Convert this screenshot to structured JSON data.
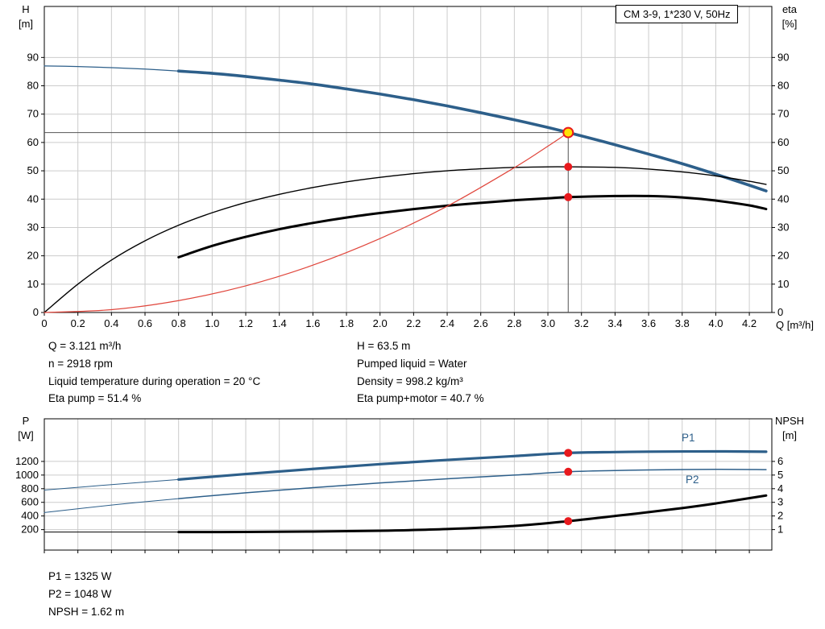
{
  "header": {
    "title_box": "CM 3-9, 1*230 V, 50Hz"
  },
  "info_top": {
    "left": [
      "Q = 3.121 m³/h",
      "n = 2918 rpm",
      "Liquid temperature during operation = 20 °C",
      "Eta pump = 51.4 %"
    ],
    "right": [
      "H = 63.5 m",
      "Pumped liquid = Water",
      "Density = 998.2 kg/m³",
      "Eta pump+motor = 40.7 %"
    ]
  },
  "info_bottom": [
    "P1 = 1325 W",
    "P2 = 1048 W",
    "NPSH = 1.62 m"
  ],
  "colors": {
    "curve_blue": "#2d5f8a",
    "curve_black": "#000000",
    "curve_red": "#e0463c",
    "marker_red": "#e8191d",
    "marker_yellow": "#ffe105",
    "grid": "#cccccc",
    "duty_line": "#555555"
  },
  "chart_data": [
    {
      "type": "line",
      "title": "CM 3-9, 1*230 V, 50Hz",
      "xlabel": "Q [m³/h]",
      "ylabel_left": [
        "H",
        "[m]"
      ],
      "ylabel_right": [
        "eta",
        "[%]"
      ],
      "xlim": [
        0,
        4.334
      ],
      "ylim_left": [
        0,
        108
      ],
      "ylim_right": [
        0,
        108
      ],
      "grid": true,
      "grid_color": "#cccccc",
      "xticks": [
        0,
        0.2,
        0.4,
        0.6,
        0.8,
        1.0,
        1.2,
        1.4,
        1.6,
        1.8,
        2.0,
        2.2,
        2.4,
        2.6,
        2.8,
        3.0,
        3.2,
        3.4,
        3.6,
        3.8,
        4.0,
        4.2
      ],
      "xtick_labels": [
        "0",
        "0.2",
        "0.4",
        "0.6",
        "0.8",
        "1.0",
        "1.2",
        "1.4",
        "1.6",
        "1.8",
        "2.0",
        "2.2",
        "2.4",
        "2.6",
        "2.8",
        "3.0",
        "3.2",
        "3.4",
        "3.6",
        "3.8",
        "4.0",
        "4.2"
      ],
      "yticks_left": [
        0,
        10,
        20,
        30,
        40,
        50,
        60,
        70,
        80,
        90
      ],
      "ytick_labels_left": [
        "0",
        "10",
        "20",
        "30",
        "40",
        "50",
        "60",
        "70",
        "80",
        "90"
      ],
      "yticks_right": [
        0,
        10,
        20,
        30,
        40,
        50,
        60,
        70,
        80,
        90
      ],
      "ytick_labels_right": [
        "0",
        "10",
        "20",
        "30",
        "40",
        "50",
        "60",
        "70",
        "80",
        "90"
      ],
      "duty": {
        "q": 3.121,
        "h": 63.5
      },
      "series": [
        {
          "name": "pump-curve-lead-in",
          "axis": "left",
          "color": "#2d5f8a",
          "width": 1.2,
          "x": [
            0,
            0.2,
            0.4,
            0.6,
            0.8
          ],
          "y": [
            87,
            86.8,
            86.4,
            85.9,
            85.2
          ]
        },
        {
          "name": "pump-curve",
          "axis": "left",
          "color": "#2d5f8a",
          "width": 3.6,
          "x": [
            0.8,
            1.0,
            1.2,
            1.4,
            1.6,
            1.8,
            2.0,
            2.2,
            2.4,
            2.6,
            2.8,
            3.0,
            3.121,
            3.2,
            3.4,
            3.6,
            3.8,
            4.0,
            4.2,
            4.3
          ],
          "y": [
            85.2,
            84.4,
            83.3,
            82.0,
            80.6,
            78.9,
            77.1,
            75.1,
            72.9,
            70.5,
            68.0,
            65.3,
            63.5,
            62.3,
            59.2,
            55.9,
            52.5,
            48.8,
            44.9,
            42.9
          ]
        },
        {
          "name": "eta-pump-curve",
          "axis": "right",
          "color": "#000000",
          "width": 1.4,
          "x": [
            0,
            0.2,
            0.4,
            0.6,
            0.8,
            1.0,
            1.2,
            1.4,
            1.6,
            1.8,
            2.0,
            2.2,
            2.4,
            2.6,
            2.8,
            3.0,
            3.121,
            3.4,
            3.6,
            3.8,
            4.0,
            4.2,
            4.3
          ],
          "y": [
            0,
            10,
            18.5,
            25.3,
            30.8,
            35.2,
            38.8,
            41.7,
            44.1,
            46.1,
            47.7,
            49.0,
            50.0,
            50.7,
            51.2,
            51.4,
            51.4,
            51.2,
            50.6,
            49.6,
            48.2,
            46.3,
            45.2
          ]
        },
        {
          "name": "eta-pump-motor-curve",
          "axis": "right",
          "color": "#000000",
          "width": 3,
          "x": [
            0.8,
            1.0,
            1.2,
            1.4,
            1.6,
            1.8,
            2.0,
            2.2,
            2.4,
            2.6,
            2.8,
            3.0,
            3.121,
            3.4,
            3.6,
            3.8,
            4.0,
            4.2,
            4.3
          ],
          "y": [
            19.5,
            23.5,
            26.7,
            29.4,
            31.6,
            33.5,
            35.1,
            36.5,
            37.7,
            38.7,
            39.6,
            40.3,
            40.7,
            41.1,
            41.1,
            40.6,
            39.5,
            37.8,
            36.5
          ]
        },
        {
          "name": "system-curve",
          "axis": "left",
          "color": "#e0463c",
          "width": 1.2,
          "x": [
            0,
            0.4,
            0.8,
            1.2,
            1.6,
            2.0,
            2.4,
            2.8,
            3.0,
            3.121
          ],
          "y": [
            0,
            1.0,
            4.2,
            9.4,
            16.7,
            26.1,
            37.5,
            51.1,
            58.7,
            63.5
          ]
        }
      ],
      "markers": [
        {
          "name": "eta-pump-duty-point",
          "x": 3.121,
          "y": 51.4,
          "axis": "right",
          "r": 5,
          "fill": "#e8191d"
        },
        {
          "name": "eta-pump-motor-duty-point",
          "x": 3.121,
          "y": 40.7,
          "axis": "right",
          "r": 5,
          "fill": "#e8191d"
        },
        {
          "name": "duty-point",
          "x": 3.121,
          "y": 63.5,
          "axis": "left",
          "r": 6,
          "fill": "#ffe105",
          "stroke": "#e8191d",
          "stroke_width": 2
        }
      ]
    },
    {
      "type": "line",
      "title": "",
      "xlabel": "",
      "ylabel_left": [
        "P",
        "[W]"
      ],
      "ylabel_right": [
        "NPSH",
        "[m]"
      ],
      "xlim": [
        0,
        4.334
      ],
      "ylim_left": [
        -100,
        1825
      ],
      "ylim_right": [
        -0.5,
        9.125
      ],
      "grid": true,
      "grid_color": "#cccccc",
      "xticks": [
        0,
        0.2,
        0.4,
        0.6,
        0.8,
        1.0,
        1.2,
        1.4,
        1.6,
        1.8,
        2.0,
        2.2,
        2.4,
        2.6,
        2.8,
        3.0,
        3.2,
        3.4,
        3.6,
        3.8,
        4.0,
        4.2
      ],
      "yticks_left": [
        200,
        400,
        600,
        800,
        1000,
        1200
      ],
      "ytick_labels_left": [
        "200",
        "400",
        "600",
        "800",
        "1000",
        "1200"
      ],
      "yticks_right": [
        1,
        2,
        3,
        4,
        5,
        6
      ],
      "ytick_labels_right": [
        "1",
        "2",
        "3",
        "4",
        "5",
        "6"
      ],
      "legend": [
        "P1",
        "P2"
      ],
      "series": [
        {
          "name": "p1-lead-in",
          "axis": "left",
          "color": "#2d5f8a",
          "width": 1,
          "x": [
            0,
            0.4,
            0.8
          ],
          "y": [
            780,
            860,
            935
          ]
        },
        {
          "name": "p1-curve",
          "label": "P1",
          "axis": "left",
          "color": "#2d5f8a",
          "width": 3.2,
          "x": [
            0.8,
            1.2,
            1.6,
            2.0,
            2.4,
            2.8,
            3.121,
            3.4,
            3.6,
            4.0,
            4.3
          ],
          "y": [
            935,
            1015,
            1090,
            1160,
            1222,
            1278,
            1325,
            1337,
            1343,
            1347,
            1342
          ]
        },
        {
          "name": "p2-lead-in",
          "axis": "left",
          "color": "#2d5f8a",
          "width": 1,
          "x": [
            0,
            0.4,
            0.8
          ],
          "y": [
            450,
            560,
            655
          ]
        },
        {
          "name": "p2-curve",
          "label": "P2",
          "axis": "left",
          "color": "#2d5f8a",
          "width": 1.5,
          "x": [
            0.8,
            1.2,
            1.6,
            2.0,
            2.4,
            2.8,
            3.121,
            3.4,
            3.6,
            4.0,
            4.3
          ],
          "y": [
            655,
            740,
            815,
            885,
            945,
            1000,
            1048,
            1066,
            1075,
            1084,
            1080
          ]
        },
        {
          "name": "npsh-lead-in",
          "axis": "right",
          "color": "#000000",
          "width": 1,
          "x": [
            0,
            0.4,
            0.8
          ],
          "y": [
            0.82,
            0.82,
            0.82
          ]
        },
        {
          "name": "npsh-curve",
          "axis": "right",
          "color": "#000000",
          "width": 3,
          "x": [
            0.8,
            1.2,
            1.6,
            2.0,
            2.4,
            2.8,
            3.121,
            3.4,
            3.6,
            3.8,
            4.0,
            4.3
          ],
          "y": [
            0.82,
            0.83,
            0.86,
            0.92,
            1.04,
            1.27,
            1.62,
            2.0,
            2.28,
            2.58,
            2.92,
            3.5
          ]
        }
      ],
      "markers": [
        {
          "name": "p1-duty-point",
          "x": 3.121,
          "y": 1325,
          "axis": "left",
          "r": 5,
          "fill": "#e8191d"
        },
        {
          "name": "p2-duty-point",
          "x": 3.121,
          "y": 1048,
          "axis": "left",
          "r": 5,
          "fill": "#e8191d"
        },
        {
          "name": "npsh-duty-point",
          "x": 3.121,
          "y": 1.62,
          "axis": "right",
          "r": 5,
          "fill": "#e8191d"
        }
      ]
    }
  ]
}
